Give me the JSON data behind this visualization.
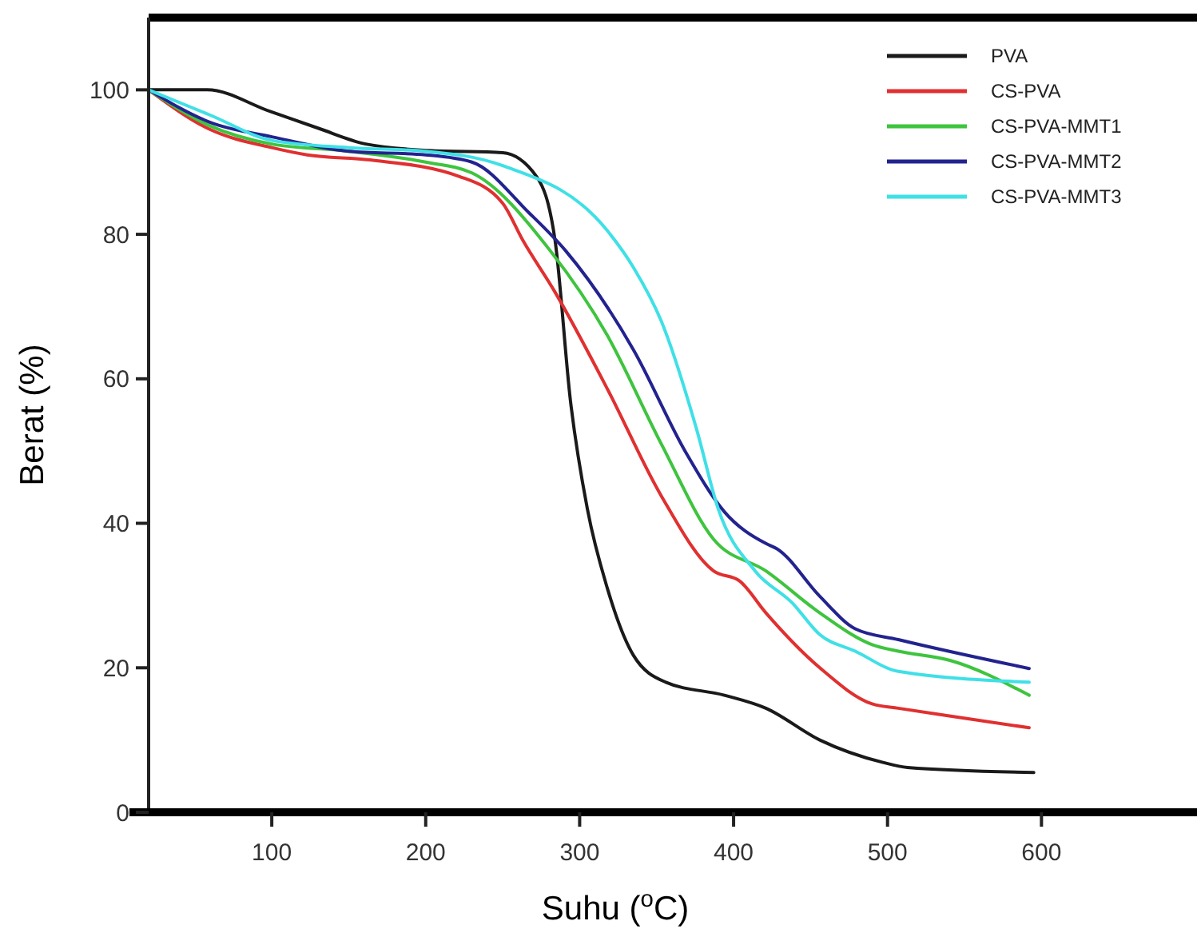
{
  "chart_data": {
    "type": "line",
    "xlabel": "Suhu ($^{o}$C)",
    "ylabel": "Berat (%)",
    "xlim": [
      20,
      700
    ],
    "ylim": [
      0,
      110
    ],
    "xticks": [
      100,
      200,
      300,
      400,
      500,
      600
    ],
    "yticks": [
      0,
      20,
      40,
      60,
      80,
      100
    ],
    "grid": false,
    "legend": "top right",
    "line_style": "solid",
    "series": [
      {
        "name": "PVA",
        "color": "#1a1a1a",
        "x": [
          20,
          58,
          99,
          130,
          161,
          202,
          250,
          272,
          284,
          294,
          305,
          318,
          335,
          356,
          394,
          421,
          456,
          497,
          513,
          595
        ],
        "values": [
          100,
          100,
          97,
          94.7,
          92.5,
          91.6,
          91.3,
          88,
          79.2,
          57,
          42,
          31,
          21.7,
          18,
          16.2,
          14.4,
          10,
          6.9,
          6.2,
          5.5
        ]
      },
      {
        "name": "CS-PVA",
        "color": "#e03030",
        "x": [
          20,
          60,
          100,
          123,
          164,
          222,
          250,
          263,
          284,
          318,
          353,
          387,
          404,
          421,
          456,
          490,
          507,
          541,
          592
        ],
        "values": [
          100,
          94.5,
          92,
          91,
          90.3,
          88,
          84.3,
          79.2,
          72,
          58.6,
          43.8,
          33.4,
          32,
          27.6,
          20,
          15,
          14.4,
          13.3,
          11.7
        ]
      },
      {
        "name": "CS-PVA-MMT1",
        "color": "#3ec43e",
        "x": [
          20,
          60,
          100,
          150,
          200,
          230,
          281,
          318,
          353,
          387,
          421,
          456,
          490,
          507,
          541,
          592
        ],
        "values": [
          100,
          95,
          92.5,
          91.5,
          90,
          88.5,
          77.7,
          66,
          51,
          37.8,
          33.4,
          27.6,
          23.2,
          22.3,
          21,
          16.2
        ]
      },
      {
        "name": "CS-PVA-MMT2",
        "color": "#23238f",
        "x": [
          20,
          60,
          100,
          150,
          200,
          230,
          267,
          291,
          335,
          369,
          394,
          421,
          428,
          456,
          479,
          507,
          592
        ],
        "values": [
          100,
          95.5,
          93.5,
          91.5,
          91,
          90,
          83,
          77.7,
          64,
          49.8,
          41.6,
          37.2,
          36.5,
          29.9,
          25.4,
          23.9,
          19.9
        ]
      },
      {
        "name": "CS-PVA-MMT3",
        "color": "#3fe0e6",
        "x": [
          20,
          60,
          100,
          150,
          200,
          250,
          318,
          335,
          353,
          376,
          390,
          414,
          438,
          456,
          479,
          507,
          592
        ],
        "values": [
          100,
          96.5,
          93,
          92,
          91.5,
          89.5,
          80.5,
          75.4,
          68,
          53,
          42,
          33.4,
          29,
          24.6,
          22.3,
          19.5,
          18
        ]
      }
    ]
  }
}
